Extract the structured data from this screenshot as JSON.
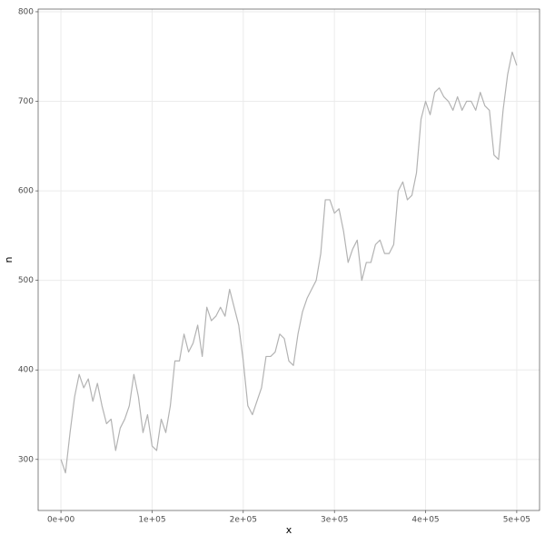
{
  "chart_data": {
    "type": "line",
    "x_label": "x",
    "y_label": "n",
    "color": "#b3b3b3",
    "grid": true,
    "xlim": [
      -25000,
      525000
    ],
    "ylim": [
      243,
      803
    ],
    "xticks": [
      {
        "value": 0,
        "label": "0e+00"
      },
      {
        "value": 100000,
        "label": "1e+05"
      },
      {
        "value": 200000,
        "label": "2e+05"
      },
      {
        "value": 300000,
        "label": "3e+05"
      },
      {
        "value": 400000,
        "label": "4e+05"
      },
      {
        "value": 500000,
        "label": "5e+05"
      }
    ],
    "yticks": [
      300,
      400,
      500,
      600,
      700,
      800
    ],
    "x": [
      0,
      5000,
      10000,
      15000,
      20000,
      25000,
      30000,
      35000,
      40000,
      45000,
      50000,
      55000,
      60000,
      65000,
      70000,
      75000,
      80000,
      85000,
      90000,
      95000,
      100000,
      105000,
      110000,
      115000,
      120000,
      125000,
      130000,
      135000,
      140000,
      145000,
      150000,
      155000,
      160000,
      165000,
      170000,
      175000,
      180000,
      185000,
      190000,
      195000,
      200000,
      205000,
      210000,
      215000,
      220000,
      225000,
      230000,
      235000,
      240000,
      245000,
      250000,
      255000,
      260000,
      265000,
      270000,
      275000,
      280000,
      285000,
      290000,
      295000,
      300000,
      305000,
      310000,
      315000,
      320000,
      325000,
      330000,
      335000,
      340000,
      345000,
      350000,
      355000,
      360000,
      365000,
      370000,
      375000,
      380000,
      385000,
      390000,
      395000,
      400000,
      405000,
      410000,
      415000,
      420000,
      425000,
      430000,
      435000,
      440000,
      445000,
      450000,
      455000,
      460000,
      465000,
      470000,
      475000,
      480000,
      485000,
      490000,
      495000,
      500000
    ],
    "values": [
      300,
      285,
      330,
      370,
      395,
      380,
      390,
      365,
      385,
      360,
      340,
      345,
      310,
      335,
      345,
      360,
      395,
      370,
      330,
      350,
      315,
      310,
      345,
      330,
      360,
      410,
      410,
      440,
      420,
      430,
      450,
      415,
      470,
      455,
      460,
      470,
      460,
      490,
      470,
      450,
      410,
      360,
      350,
      365,
      380,
      415,
      415,
      420,
      440,
      435,
      410,
      405,
      440,
      465,
      480,
      490,
      500,
      530,
      590,
      590,
      575,
      580,
      555,
      520,
      535,
      545,
      500,
      520,
      520,
      540,
      545,
      530,
      530,
      540,
      600,
      610,
      590,
      595,
      620,
      680,
      700,
      685,
      710,
      715,
      705,
      700,
      690,
      705,
      690,
      700,
      700,
      690,
      710,
      695,
      690,
      640,
      635,
      690,
      730,
      755,
      740
    ]
  }
}
